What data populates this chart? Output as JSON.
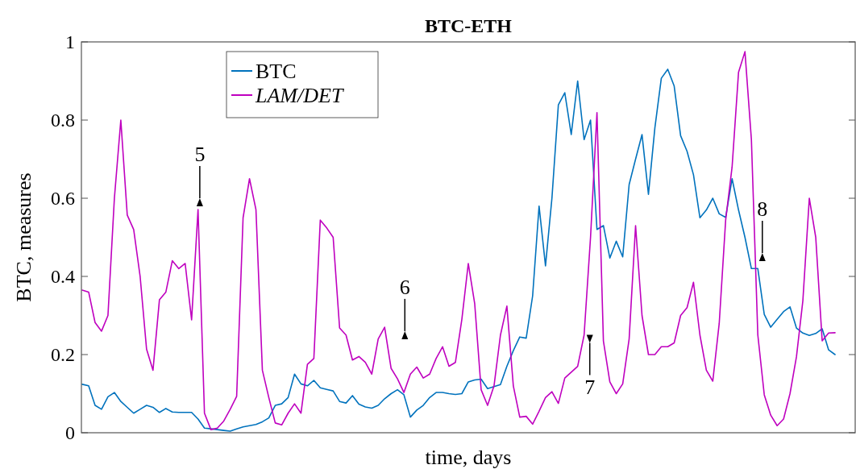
{
  "chart_data": {
    "type": "line",
    "title": "BTC-ETH",
    "xlabel": "time, days",
    "ylabel": "BTC, measures",
    "ylim": [
      0,
      1
    ],
    "yticks": [
      0,
      0.2,
      0.4,
      0.6,
      0.8,
      1
    ],
    "tick_labels": "y",
    "legend": "top left",
    "line_style": "solid",
    "categories": [
      null,
      null,
      null,
      null,
      null,
      null,
      null,
      null,
      null,
      null,
      null,
      null,
      null,
      null,
      null,
      null,
      null,
      null,
      null,
      null,
      null,
      null,
      null,
      null,
      null,
      null,
      null,
      null,
      null,
      null,
      null,
      null,
      null,
      null,
      null,
      null,
      null,
      null,
      null,
      null,
      null,
      null,
      null,
      null,
      null,
      null,
      null,
      null,
      null,
      null,
      null,
      null,
      null,
      null,
      null,
      null,
      null,
      null,
      null,
      null,
      null,
      null,
      null,
      null,
      null,
      null,
      null,
      null,
      null,
      null,
      null,
      null,
      null,
      null,
      null,
      null,
      null,
      null,
      null,
      null,
      null,
      null,
      null,
      null,
      null,
      null,
      null,
      null,
      null,
      null,
      null,
      null,
      null,
      null,
      null,
      null,
      null,
      null,
      null,
      null,
      null,
      null,
      null,
      null,
      null,
      null,
      null,
      null,
      null,
      null,
      null,
      null,
      null,
      null,
      null,
      null,
      null,
      null
    ],
    "series": [
      {
        "name": "BTC",
        "color": "#0072bd",
        "values": [
          0.124,
          0.12,
          0.07,
          0.06,
          0.092,
          0.103,
          0.08,
          0.065,
          0.05,
          0.06,
          0.07,
          0.065,
          0.052,
          0.062,
          0.053,
          0.052,
          0.052,
          0.052,
          0.035,
          0.012,
          0.01,
          0.008,
          0.006,
          0.004,
          0.01,
          0.015,
          0.018,
          0.021,
          0.028,
          0.038,
          0.07,
          0.074,
          0.09,
          0.15,
          0.125,
          0.12,
          0.134,
          0.115,
          0.111,
          0.107,
          0.08,
          0.076,
          0.095,
          0.073,
          0.066,
          0.063,
          0.07,
          0.087,
          0.1,
          0.11,
          0.097,
          0.04,
          0.058,
          0.07,
          0.09,
          0.103,
          0.103,
          0.1,
          0.098,
          0.1,
          0.13,
          0.135,
          0.137,
          0.113,
          0.118,
          0.123,
          0.17,
          0.21,
          0.245,
          0.242,
          0.35,
          0.58,
          0.427,
          0.6,
          0.839,
          0.87,
          0.763,
          0.9,
          0.75,
          0.8,
          0.52,
          0.53,
          0.447,
          0.49,
          0.45,
          0.635,
          0.7,
          0.763,
          0.61,
          0.78,
          0.907,
          0.93,
          0.887,
          0.76,
          0.72,
          0.66,
          0.55,
          0.57,
          0.6,
          0.56,
          0.551,
          0.65,
          0.57,
          0.5,
          0.42,
          0.42,
          0.303,
          0.27,
          0.29,
          0.31,
          0.322,
          0.268,
          0.255,
          0.249,
          0.254,
          0.266,
          0.212,
          0.2
        ]
      },
      {
        "name": "LAM/DET",
        "color": "#bf00bf",
        "values": [
          0.365,
          0.36,
          0.282,
          0.26,
          0.3,
          0.6,
          0.8,
          0.557,
          0.52,
          0.4,
          0.214,
          0.16,
          0.34,
          0.36,
          0.44,
          0.42,
          0.433,
          0.289,
          0.571,
          0.05,
          0.008,
          0.012,
          0.03,
          0.06,
          0.093,
          0.55,
          0.65,
          0.571,
          0.16,
          0.09,
          0.025,
          0.02,
          0.05,
          0.074,
          0.05,
          0.175,
          0.19,
          0.544,
          0.524,
          0.5,
          0.268,
          0.25,
          0.186,
          0.195,
          0.18,
          0.15,
          0.24,
          0.27,
          0.165,
          0.138,
          0.103,
          0.15,
          0.168,
          0.14,
          0.15,
          0.19,
          0.22,
          0.17,
          0.18,
          0.29,
          0.433,
          0.33,
          0.11,
          0.07,
          0.12,
          0.25,
          0.324,
          0.12,
          0.04,
          0.042,
          0.022,
          0.055,
          0.09,
          0.105,
          0.075,
          0.14,
          0.155,
          0.17,
          0.25,
          0.5,
          0.819,
          0.235,
          0.13,
          0.1,
          0.125,
          0.24,
          0.53,
          0.3,
          0.2,
          0.2,
          0.22,
          0.22,
          0.23,
          0.3,
          0.32,
          0.385,
          0.25,
          0.16,
          0.132,
          0.28,
          0.544,
          0.68,
          0.922,
          0.975,
          0.75,
          0.25,
          0.097,
          0.045,
          0.018,
          0.035,
          0.1,
          0.194,
          0.338,
          0.6,
          0.5,
          0.235,
          0.255,
          0.256
        ]
      }
    ],
    "annotations": [
      "5",
      "6",
      "7",
      "8"
    ]
  }
}
